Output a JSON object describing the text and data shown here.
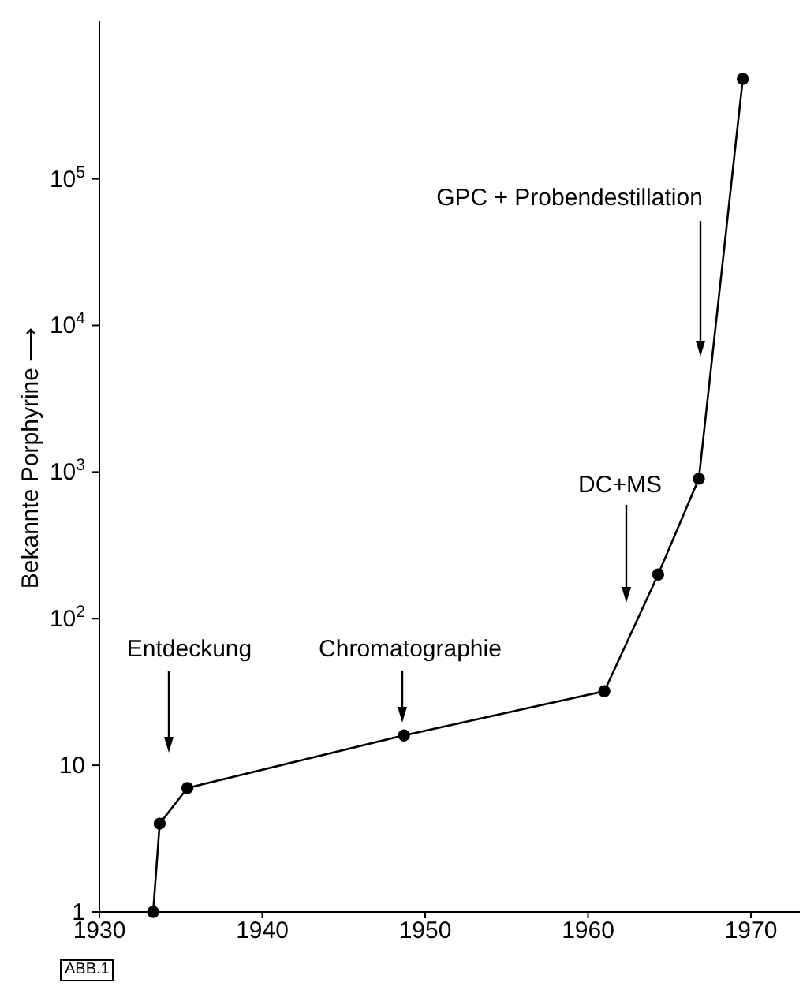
{
  "chart_data": {
    "type": "line",
    "ylabel": "Bekannte Porphyrine ⟶",
    "x": [
      1933.3,
      1933.7,
      1935.4,
      1948.7,
      1961.0,
      1964.3,
      1966.8,
      1969.5
    ],
    "values": [
      1,
      4,
      7,
      16,
      32,
      200,
      900,
      480000
    ],
    "color": "#000000",
    "marker": "circle",
    "line_style": "solid",
    "log": "y",
    "xlim": [
      1930,
      1973
    ],
    "xticks": [
      1930,
      1940,
      1950,
      1960,
      1970
    ],
    "ylim": [
      1,
      1200000
    ],
    "yticks": [
      1,
      10,
      {
        "value": 100,
        "label": "10$^{2}$"
      },
      {
        "value": 1000,
        "label": "10$^{3}$"
      },
      {
        "value": 10000,
        "label": "10$^{4}$"
      },
      {
        "value": 100000,
        "label": "10$^{5}$"
      }
    ],
    "annotations": [
      "Entdeckung",
      "Chromatographie",
      "DC+MS",
      "GPC + Probendestillation",
      "ABB.1"
    ]
  }
}
